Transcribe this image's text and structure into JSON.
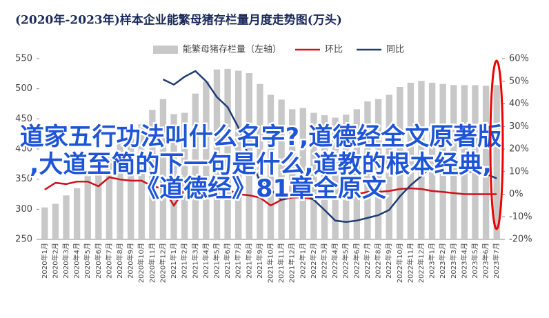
{
  "chart_data": {
    "type": "bar_line",
    "title": "(2020年-2023年)样本企业能繁母猪存栏量月度走势图(万头)",
    "categories": [
      "2020年1月",
      "2020年2月",
      "2020年3月",
      "2020年4月",
      "2020年5月",
      "2020年6月",
      "2020年7月",
      "2020年8月",
      "2020年9月",
      "2020年10月",
      "2020年11月",
      "2020年12月",
      "2021年1月",
      "2021年2月",
      "2021年3月",
      "2021年4月",
      "2021年5月",
      "2021年6月",
      "2021年7月",
      "2021年8月",
      "2021年9月",
      "2021年10月",
      "2021年11月",
      "2021年12月",
      "2022年1月",
      "2022年2月",
      "2022年3月",
      "2022年4月",
      "2022年5月",
      "2022年6月",
      "2022年7月",
      "2022年8月",
      "2022年9月",
      "2022年10月",
      "2022年11月",
      "2022年12月",
      "2023年1月",
      "2023年2月",
      "2023年3月",
      "2023年4月",
      "2023年5月",
      "2023年6月",
      "2023年7月"
    ],
    "series": [
      {
        "name": "能繁母猪存栏量（左轴）",
        "kind": "bar",
        "axis": "y",
        "color": "#c8c8c8",
        "values": [
          303,
          309,
          323,
          335,
          355,
          375,
          390,
          410,
          425,
          441,
          465,
          483,
          458,
          460,
          492,
          512,
          532,
          533,
          530,
          526,
          508,
          490,
          482,
          466,
          468,
          460,
          456,
          452,
          457,
          466,
          479,
          483,
          490,
          503,
          510,
          513,
          510,
          508,
          506,
          506,
          506,
          505,
          506
        ]
      },
      {
        "name": "环比",
        "kind": "line",
        "axis": "y2",
        "color": "#d0101b",
        "values": [
          2,
          5,
          4.5,
          5.6,
          5.6,
          3.5,
          7.5,
          6.5,
          6,
          6,
          3.5,
          2.5,
          -5,
          2,
          6,
          4,
          5,
          2,
          0,
          -0.5,
          -1.5,
          -5,
          -2.5,
          -1.5,
          -1.4,
          -2.3,
          -1.5,
          -1.5,
          -1,
          0,
          1,
          1,
          1.4,
          2.3,
          2.6,
          2.3,
          1.4,
          1,
          0.5,
          0,
          0,
          0,
          0
        ]
      },
      {
        "name": "同比",
        "kind": "line",
        "axis": "y2",
        "color": "#1f3b75",
        "values": [
          null,
          null,
          null,
          null,
          null,
          null,
          null,
          null,
          null,
          null,
          null,
          50.8,
          48.5,
          52,
          54.5,
          50,
          43,
          38.5,
          29.5,
          16,
          6,
          2,
          -2.5,
          -1,
          1,
          -2.5,
          -7,
          -11.7,
          -12.3,
          -11.7,
          -10.5,
          -9.3,
          -7,
          -1,
          4,
          8,
          12.5,
          14,
          10,
          10,
          10,
          9,
          7
        ]
      }
    ],
    "ylim": [
      250,
      550
    ],
    "yticks": [
      250,
      300,
      350,
      400,
      450,
      500,
      550
    ],
    "y2lim": [
      -20,
      60
    ],
    "y2ticks": [
      {
        "value": -20,
        "label": "-20%"
      },
      {
        "value": -10,
        "label": "-10%"
      },
      {
        "value": 0,
        "label": "0%"
      },
      {
        "value": 10,
        "label": "10%"
      },
      {
        "value": 20,
        "label": "20%"
      },
      {
        "value": 30,
        "label": "30%"
      },
      {
        "value": 40,
        "label": "40%"
      },
      {
        "value": 50,
        "label": "50%"
      },
      {
        "value": 60,
        "label": "60%"
      }
    ],
    "legend": "top",
    "annotations": [
      "道家五行功法叫什么名字?,道德经全文原著版",
      ",大道至简的下一句是什么,道教的根本经典,",
      "《道德经》81章全原文"
    ]
  }
}
